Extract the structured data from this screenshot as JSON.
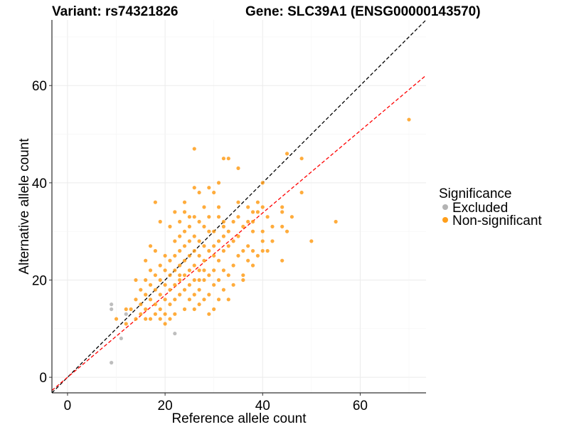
{
  "chart_data": {
    "type": "scatter",
    "title_left": "Variant: rs74321826",
    "title_right": "Gene: SLC39A1 (ENSG00000143570)",
    "xlabel": "Reference allele count",
    "ylabel": "Alternative allele count",
    "xlim": [
      -3.2,
      73.5
    ],
    "ylim": [
      -3.2,
      73.5
    ],
    "x_ticks": [
      0,
      20,
      40,
      60
    ],
    "y_ticks": [
      0,
      20,
      40,
      60
    ],
    "grid": true,
    "legend": {
      "title": "Significance",
      "placement": "right",
      "entries": [
        {
          "label": "Excluded",
          "color": "#b3b3b3"
        },
        {
          "label": "Non-significant",
          "color": "#ff9e1a"
        }
      ]
    },
    "reference_lines": [
      {
        "type": "diagonal",
        "slope": 1.0,
        "intercept": 0,
        "color": "#000000",
        "style": "dashed"
      },
      {
        "type": "diagonal",
        "slope": 0.845,
        "intercept": 0,
        "color": "#ff0000",
        "style": "dashed"
      }
    ],
    "series": [
      {
        "color": "#b3b3b3",
        "points": [
          [
            9,
            15
          ],
          [
            9,
            3
          ],
          [
            11,
            8
          ],
          [
            22,
            9
          ],
          [
            9,
            14
          ],
          [
            12,
            13
          ]
        ]
      },
      {
        "color": "#ff9e1a",
        "points": [
          [
            70,
            53
          ],
          [
            55,
            32
          ],
          [
            50,
            28
          ],
          [
            48,
            45
          ],
          [
            48,
            38
          ],
          [
            46,
            33
          ],
          [
            45,
            46
          ],
          [
            45,
            30
          ],
          [
            44,
            31
          ],
          [
            44,
            35
          ],
          [
            44,
            24
          ],
          [
            42,
            28
          ],
          [
            41,
            26
          ],
          [
            40,
            40
          ],
          [
            40,
            35
          ],
          [
            40,
            30
          ],
          [
            40,
            28
          ],
          [
            39,
            36
          ],
          [
            39,
            34
          ],
          [
            39,
            25
          ],
          [
            38,
            34
          ],
          [
            38,
            32
          ],
          [
            38,
            30
          ],
          [
            38,
            26
          ],
          [
            38,
            23
          ],
          [
            37,
            35
          ],
          [
            37,
            32
          ],
          [
            37,
            27
          ],
          [
            37,
            24
          ],
          [
            36,
            31
          ],
          [
            36,
            26
          ],
          [
            36,
            21
          ],
          [
            35,
            43
          ],
          [
            35,
            36
          ],
          [
            35,
            33
          ],
          [
            35,
            29
          ],
          [
            35,
            25
          ],
          [
            34,
            32
          ],
          [
            34,
            28
          ],
          [
            34,
            23
          ],
          [
            34,
            19
          ],
          [
            33,
            45
          ],
          [
            33,
            30
          ],
          [
            33,
            27
          ],
          [
            33,
            21
          ],
          [
            32,
            45
          ],
          [
            32,
            31
          ],
          [
            32,
            29
          ],
          [
            32,
            26
          ],
          [
            32,
            22
          ],
          [
            32,
            18
          ],
          [
            31,
            40
          ],
          [
            31,
            33
          ],
          [
            31,
            28
          ],
          [
            31,
            24
          ],
          [
            31,
            20
          ],
          [
            31,
            16
          ],
          [
            30,
            38
          ],
          [
            30,
            30
          ],
          [
            30,
            27
          ],
          [
            30,
            22
          ],
          [
            30,
            19
          ],
          [
            30,
            14
          ],
          [
            29,
            39
          ],
          [
            29,
            33
          ],
          [
            29,
            30
          ],
          [
            29,
            26
          ],
          [
            29,
            21
          ],
          [
            29,
            17
          ],
          [
            29,
            13
          ],
          [
            28,
            35
          ],
          [
            28,
            31
          ],
          [
            28,
            27
          ],
          [
            28,
            24
          ],
          [
            28,
            20
          ],
          [
            28,
            16
          ],
          [
            27,
            38
          ],
          [
            27,
            32
          ],
          [
            27,
            28
          ],
          [
            27,
            25
          ],
          [
            27,
            22
          ],
          [
            27,
            18
          ],
          [
            27,
            15
          ],
          [
            26,
            47
          ],
          [
            26,
            39
          ],
          [
            26,
            33
          ],
          [
            26,
            29
          ],
          [
            26,
            26
          ],
          [
            26,
            23
          ],
          [
            26,
            20
          ],
          [
            26,
            17
          ],
          [
            26,
            14
          ],
          [
            25,
            31
          ],
          [
            25,
            28
          ],
          [
            25,
            25
          ],
          [
            25,
            22
          ],
          [
            25,
            19
          ],
          [
            25,
            16
          ],
          [
            24,
            34
          ],
          [
            24,
            30
          ],
          [
            24,
            27
          ],
          [
            24,
            24
          ],
          [
            24,
            21
          ],
          [
            24,
            18
          ],
          [
            24,
            14
          ],
          [
            23,
            32
          ],
          [
            23,
            29
          ],
          [
            23,
            26
          ],
          [
            23,
            23
          ],
          [
            23,
            20
          ],
          [
            23,
            17
          ],
          [
            22,
            28
          ],
          [
            22,
            25
          ],
          [
            22,
            22
          ],
          [
            22,
            19
          ],
          [
            22,
            16
          ],
          [
            22,
            13
          ],
          [
            21,
            31
          ],
          [
            21,
            24
          ],
          [
            21,
            21
          ],
          [
            21,
            18
          ],
          [
            21,
            15
          ],
          [
            21,
            12
          ],
          [
            20,
            25
          ],
          [
            20,
            22
          ],
          [
            20,
            19
          ],
          [
            20,
            16
          ],
          [
            20,
            13
          ],
          [
            20,
            11
          ],
          [
            19,
            32
          ],
          [
            19,
            23
          ],
          [
            19,
            20
          ],
          [
            19,
            17
          ],
          [
            19,
            14
          ],
          [
            19,
            12
          ],
          [
            18,
            36
          ],
          [
            18,
            26
          ],
          [
            18,
            21
          ],
          [
            18,
            18
          ],
          [
            18,
            15
          ],
          [
            18,
            13
          ],
          [
            17,
            27
          ],
          [
            17,
            22
          ],
          [
            17,
            19
          ],
          [
            17,
            16
          ],
          [
            17,
            12
          ],
          [
            16,
            24
          ],
          [
            16,
            20
          ],
          [
            16,
            17
          ],
          [
            16,
            14
          ],
          [
            16,
            12
          ],
          [
            15,
            18
          ],
          [
            15,
            15
          ],
          [
            15,
            13
          ],
          [
            14,
            20
          ],
          [
            14,
            16
          ],
          [
            14,
            12
          ],
          [
            13,
            14
          ],
          [
            12,
            14
          ],
          [
            12,
            11
          ],
          [
            10,
            12
          ],
          [
            44,
            34
          ],
          [
            42,
            31
          ],
          [
            41,
            33
          ],
          [
            40,
            26
          ],
          [
            36,
            20
          ],
          [
            33,
            16
          ],
          [
            32,
            32
          ],
          [
            31,
            35
          ],
          [
            30,
            25
          ],
          [
            28,
            22
          ],
          [
            27,
            20
          ],
          [
            25,
            33
          ],
          [
            24,
            36
          ],
          [
            23,
            21
          ],
          [
            22,
            34
          ]
        ]
      }
    ]
  }
}
